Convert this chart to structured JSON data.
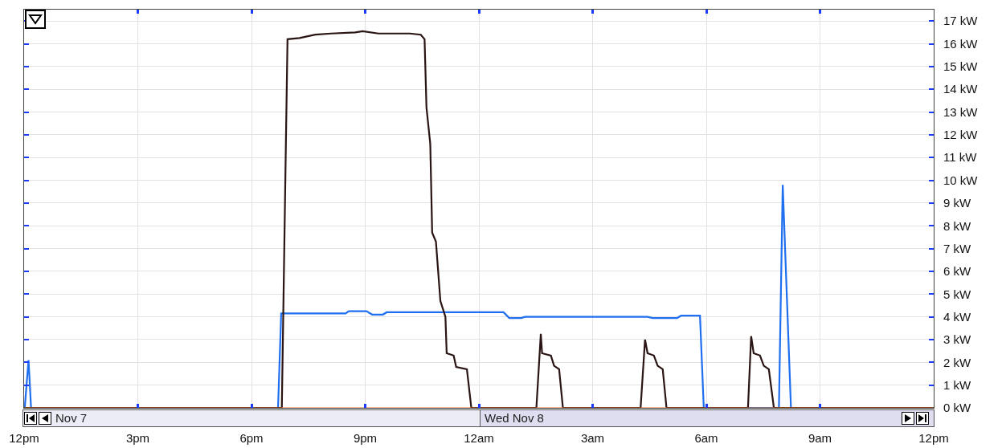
{
  "chart_data": {
    "type": "line",
    "x": [
      "--11-07T12:00",
      "--11-08T12:00"
    ],
    "xlim": [
      "--11-07T12:00",
      "--11-08T12:00"
    ],
    "xticks": [
      {
        "value": "--11-07T12:00",
        "label": "12pm"
      },
      {
        "value": "--11-07T15:00",
        "label": "3pm"
      },
      {
        "value": "--11-07T18:00",
        "label": "6pm"
      },
      {
        "value": "--11-07T21:00",
        "label": "9pm"
      },
      {
        "value": "--11-08T00:00",
        "label": "12am"
      },
      {
        "value": "--11-08T03:00",
        "label": "3am"
      },
      {
        "value": "--11-08T06:00",
        "label": "6am"
      },
      {
        "value": "--11-08T09:00",
        "label": "9am"
      },
      {
        "value": "--11-08T12:00",
        "label": "12pm"
      }
    ],
    "ylim": [
      0,
      17.5
    ],
    "yticks": [
      {
        "value": 0,
        "label": "0 kW"
      },
      {
        "value": 1,
        "label": "1 kW"
      },
      {
        "value": 2,
        "label": "2 kW"
      },
      {
        "value": 3,
        "label": "3 kW"
      },
      {
        "value": 4,
        "label": "4 kW"
      },
      {
        "value": 5,
        "label": "5 kW"
      },
      {
        "value": 6,
        "label": "6 kW"
      },
      {
        "value": 7,
        "label": "7 kW"
      },
      {
        "value": 8,
        "label": "8 kW"
      },
      {
        "value": 9,
        "label": "9 kW"
      },
      {
        "value": 10,
        "label": "10 kW"
      },
      {
        "value": 11,
        "label": "11 kW"
      },
      {
        "value": 12,
        "label": "12 kW"
      },
      {
        "value": 13,
        "label": "13 kW"
      },
      {
        "value": 14,
        "label": "14 kW"
      },
      {
        "value": 15,
        "label": "15 kW"
      },
      {
        "value": 16,
        "label": "16 kW"
      },
      {
        "value": 17,
        "label": "17 kW"
      }
    ],
    "series": [
      {
        "color": "#1f6ff0",
        "x": [
          "--11-07T12:00",
          "--11-07T12:01",
          "--11-07T12:07",
          "--11-07T12:11",
          "--11-07T18:42",
          "--11-07T18:47",
          "--11-07T20:29",
          "--11-07T20:34",
          "--11-07T21:02",
          "--11-07T21:11",
          "--11-07T21:28",
          "--11-07T21:34",
          "--11-08T00:39",
          "--11-08T00:48",
          "--11-08T01:07",
          "--11-08T01:13",
          "--11-08T04:27",
          "--11-08T04:35",
          "--11-08T05:14",
          "--11-08T05:20",
          "--11-08T05:50",
          "--11-08T05:56",
          "--11-08T07:55",
          "--11-08T08:01",
          "--11-08T08:14",
          "--11-08T12:00"
        ],
        "values": [
          0,
          0,
          2.1,
          0,
          0,
          4.15,
          4.15,
          4.25,
          4.25,
          4.1,
          4.1,
          4.2,
          4.2,
          3.95,
          3.95,
          4.0,
          4.0,
          3.95,
          3.95,
          4.05,
          4.05,
          0,
          0,
          9.8,
          0,
          0
        ]
      },
      {
        "color": "#2a1414",
        "x": [
          "--11-07T12:00",
          "--11-07T18:48",
          "--11-07T18:57",
          "--11-07T19:16",
          "--11-07T19:41",
          "--11-07T20:06",
          "--11-07T20:44",
          "--11-07T20:56",
          "--11-07T21:21",
          "--11-07T22:11",
          "--11-07T22:28",
          "--11-07T22:34",
          "--11-07T22:37",
          "--11-07T22:43",
          "--11-07T22:46",
          "--11-07T22:52",
          "--11-07T22:59",
          "--11-07T23:07",
          "--11-07T23:09",
          "--11-07T23:20",
          "--11-07T23:24",
          "--11-07T23:41",
          "--11-07T23:48",
          "--11-08T01:31",
          "--11-08T01:38",
          "--11-08T01:40",
          "--11-08T01:54",
          "--11-08T01:59",
          "--11-08T02:07",
          "--11-08T02:13",
          "--11-08T04:16",
          "--11-08T04:23",
          "--11-08T04:27",
          "--11-08T04:37",
          "--11-08T04:43",
          "--11-08T04:51",
          "--11-08T04:57",
          "--11-08T07:06",
          "--11-08T07:11",
          "--11-08T07:15",
          "--11-08T07:25",
          "--11-08T07:31",
          "--11-08T07:39",
          "--11-08T07:47",
          "--11-08T12:00"
        ],
        "values": [
          0,
          0,
          16.2,
          16.25,
          16.4,
          16.45,
          16.5,
          16.55,
          16.45,
          16.45,
          16.4,
          16.2,
          13.2,
          11.6,
          7.7,
          7.3,
          4.7,
          4.0,
          2.4,
          2.3,
          1.8,
          1.7,
          0,
          0,
          3.25,
          2.4,
          2.3,
          1.85,
          1.7,
          0,
          0,
          3.0,
          2.4,
          2.3,
          1.85,
          1.7,
          0,
          0,
          3.15,
          2.4,
          2.3,
          1.85,
          1.7,
          0,
          0
        ]
      },
      {
        "color": "#e0702a",
        "values": [
          0,
          0
        ]
      }
    ],
    "annotations": [
      "Nov 7",
      "Wed Nov 8"
    ],
    "grid": true,
    "marker": "none",
    "line_style": "solid"
  }
}
